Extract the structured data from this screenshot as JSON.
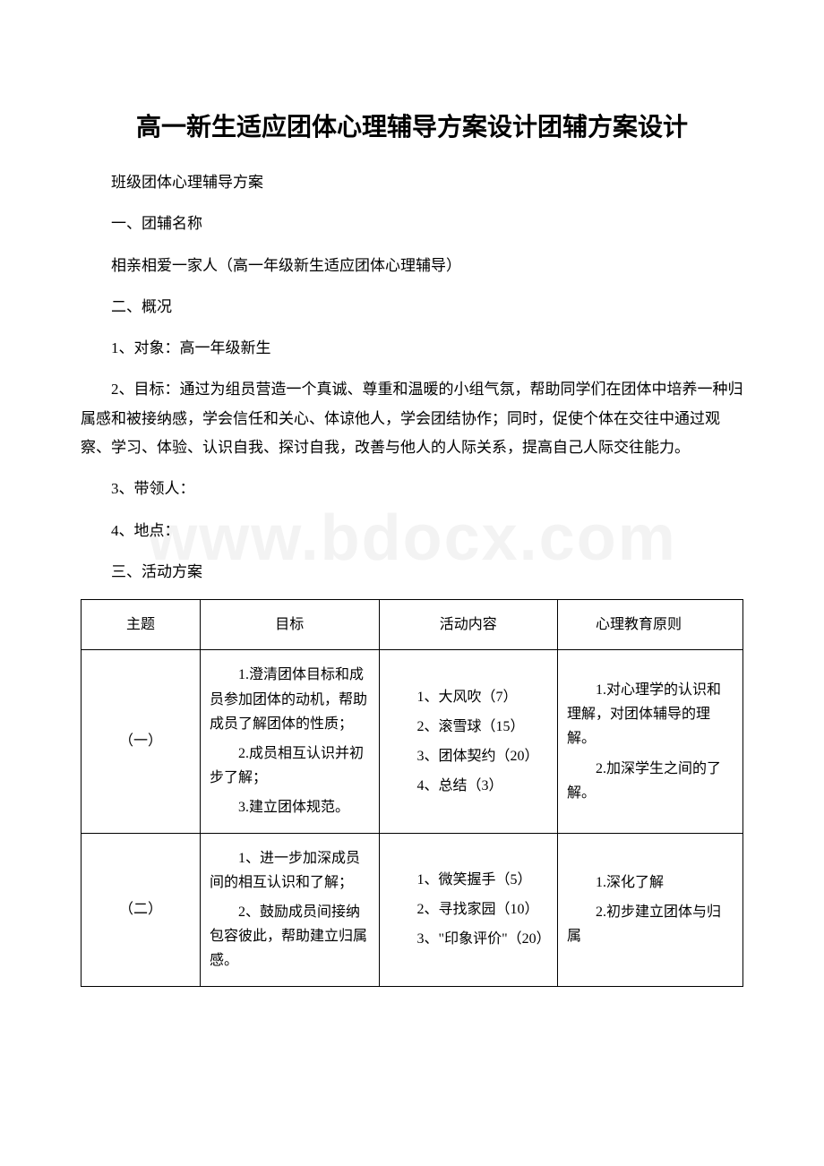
{
  "watermark": "www.bdocx.com",
  "title": "高一新生适应团体心理辅导方案设计团辅方案设计",
  "intro": {
    "p1": "班级团体心理辅导方案",
    "p2": "一、团辅名称",
    "p3": " 相亲相爱一家人（高一年级新生适应团体心理辅导）",
    "p4": "二、概况",
    "p5": "1、对象：高一年级新生",
    "p6": "2、目标：通过为组员营造一个真诚、尊重和温暖的小组气氛，帮助同学们在团体中培养一种归属感和被接纳感，学会信任和关心、体谅他人，学会团结协作；同时，促使个体在交往中通过观察、学习、体验、认识自我、探讨自我，改善与他人的人际关系，提高自己人际交往能力。",
    "p7": "3、带领人：",
    "p8": "4、地点：",
    "p9": "三、活动方案"
  },
  "table": {
    "headers": {
      "theme": "主题",
      "goal": "目标",
      "activity": "活动内容",
      "principle": "心理教育原则"
    },
    "rows": [
      {
        "theme": "（一）",
        "goal": {
          "g1": "1.澄清团体目标和成员参加团体的动机，帮助成员了解团体的性质；",
          "g2": "2.成员相互认识并初步了解；",
          "g3": "3.建立团体规范。"
        },
        "activity": {
          "a1": "1、大风吹（7）",
          "a2": "2、滚雪球（15）",
          "a3": "3、团体契约（20）",
          "a4": "4、总结（3）"
        },
        "principle": {
          "p1": "1.对心理学的认识和理解，对团体辅导的理解。",
          "p2": "2.加深学生之间的了解。"
        }
      },
      {
        "theme": "（二）",
        "goal": {
          "g1": "1、进一步加深成员间的相互认识和了解；",
          "g2": "2、鼓励成员间接纳包容彼此，帮助建立归属感。"
        },
        "activity": {
          "a1": "1、微笑握手（5）",
          "a2": "2、寻找家园（10）",
          "a3": "3、\"印象评价\"（20）"
        },
        "principle": {
          "p1": "1.深化了解",
          "p2": "2.初步建立团体与归属"
        }
      }
    ]
  }
}
